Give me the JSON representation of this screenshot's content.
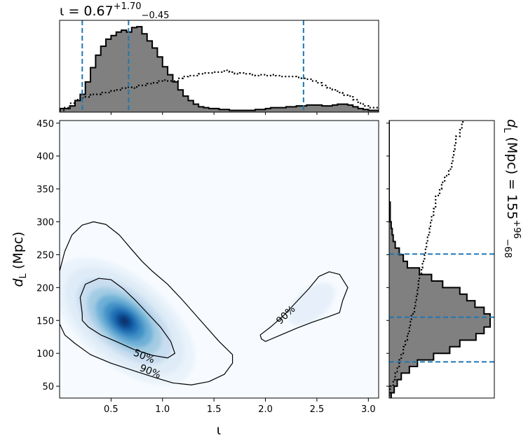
{
  "chart_data": [
    {
      "type": "histogram",
      "panel": "top-marginal",
      "title": {
        "base": "ι = 0.67",
        "sup": "+1.70",
        "sub": "−0.45"
      },
      "x_range": [
        0.0,
        3.1
      ],
      "bin_width": 0.05,
      "posterior_hist": [
        0.04,
        0.04,
        0.07,
        0.13,
        0.2,
        0.34,
        0.5,
        0.64,
        0.74,
        0.82,
        0.86,
        0.9,
        0.92,
        0.9,
        0.95,
        0.96,
        0.88,
        0.8,
        0.72,
        0.62,
        0.51,
        0.42,
        0.34,
        0.25,
        0.18,
        0.13,
        0.09,
        0.06,
        0.05,
        0.04,
        0.04,
        0.03,
        0.03,
        0.02,
        0.02,
        0.02,
        0.02,
        0.02,
        0.03,
        0.03,
        0.04,
        0.05,
        0.05,
        0.05,
        0.06,
        0.06,
        0.07,
        0.07,
        0.08,
        0.08,
        0.08,
        0.07,
        0.07,
        0.08,
        0.09,
        0.09,
        0.08,
        0.06,
        0.04,
        0.03,
        0.02,
        0.02
      ],
      "prior_line": [
        0.02,
        0.05,
        0.1,
        0.14,
        0.16,
        0.17,
        0.2,
        0.2,
        0.22,
        0.22,
        0.24,
        0.25,
        0.27,
        0.28,
        0.27,
        0.3,
        0.3,
        0.32,
        0.33,
        0.35,
        0.36,
        0.35,
        0.35,
        0.38,
        0.4,
        0.41,
        0.41,
        0.43,
        0.44,
        0.44,
        0.45,
        0.45,
        0.47,
        0.45,
        0.43,
        0.44,
        0.43,
        0.42,
        0.41,
        0.42,
        0.41,
        0.42,
        0.41,
        0.4,
        0.4,
        0.4,
        0.39,
        0.38,
        0.37,
        0.35,
        0.33,
        0.3,
        0.27,
        0.25,
        0.22,
        0.19,
        0.18,
        0.14,
        0.1,
        0.07,
        0.05,
        0.05
      ],
      "vlines": [
        0.22,
        0.67,
        2.37
      ],
      "colors": {
        "hist_fill": "#808080",
        "hist_edge": "#000000",
        "vline": "#1f77b4"
      }
    },
    {
      "type": "heatmap",
      "panel": "main",
      "xlabel": "ι",
      "ylabel": {
        "base": "d",
        "sub": "L",
        "unit": " (Mpc)"
      },
      "x_range": [
        0.0,
        3.1
      ],
      "y_range": [
        32,
        454
      ],
      "x_ticks": [
        "0.5",
        "1.0",
        "1.5",
        "2.0",
        "2.5",
        "3.0"
      ],
      "x_tick_values": [
        0.5,
        1.0,
        1.5,
        2.0,
        2.5,
        3.0
      ],
      "y_ticks": [
        "50",
        "100",
        "150",
        "200",
        "250",
        "300",
        "350",
        "400",
        "450"
      ],
      "y_tick_values": [
        50,
        100,
        150,
        200,
        250,
        300,
        350,
        400,
        450
      ],
      "density_peak": {
        "x": 0.6,
        "y": 150
      },
      "contours": [
        {
          "level": "90%",
          "points": [
            [
              0.0,
              225
            ],
            [
              0.05,
              255
            ],
            [
              0.12,
              280
            ],
            [
              0.22,
              295
            ],
            [
              0.33,
              300
            ],
            [
              0.45,
              296
            ],
            [
              0.58,
              280
            ],
            [
              0.7,
              258
            ],
            [
              0.8,
              240
            ],
            [
              0.9,
              225
            ],
            [
              1.05,
              205
            ],
            [
              1.2,
              180
            ],
            [
              1.38,
              148
            ],
            [
              1.55,
              118
            ],
            [
              1.68,
              98
            ],
            [
              1.68,
              85
            ],
            [
              1.6,
              68
            ],
            [
              1.45,
              57
            ],
            [
              1.28,
              52
            ],
            [
              1.1,
              55
            ],
            [
              0.95,
              62
            ],
            [
              0.75,
              72
            ],
            [
              0.5,
              85
            ],
            [
              0.3,
              98
            ],
            [
              0.15,
              115
            ],
            [
              0.05,
              128
            ],
            [
              0.0,
              145
            ]
          ]
        },
        {
          "level": "50%",
          "points": [
            [
              0.22,
              160
            ],
            [
              0.2,
              185
            ],
            [
              0.25,
              205
            ],
            [
              0.38,
              214
            ],
            [
              0.5,
              212
            ],
            [
              0.62,
              198
            ],
            [
              0.74,
              180
            ],
            [
              0.86,
              160
            ],
            [
              0.98,
              140
            ],
            [
              1.08,
              118
            ],
            [
              1.12,
              100
            ],
            [
              1.05,
              93
            ],
            [
              0.9,
              97
            ],
            [
              0.72,
              106
            ],
            [
              0.55,
              118
            ],
            [
              0.4,
              128
            ],
            [
              0.28,
              140
            ],
            [
              0.22,
              150
            ]
          ]
        },
        {
          "level": "90%",
          "points": [
            [
              1.95,
              128
            ],
            [
              2.05,
              140
            ],
            [
              2.18,
              158
            ],
            [
              2.3,
              178
            ],
            [
              2.42,
              198
            ],
            [
              2.52,
              217
            ],
            [
              2.62,
              224
            ],
            [
              2.72,
              220
            ],
            [
              2.8,
              200
            ],
            [
              2.75,
              180
            ],
            [
              2.72,
              162
            ],
            [
              2.6,
              155
            ],
            [
              2.45,
              147
            ],
            [
              2.3,
              138
            ],
            [
              2.15,
              128
            ],
            [
              2.0,
              118
            ],
            [
              1.96,
              122
            ]
          ]
        }
      ],
      "contour_labels": [
        {
          "text": "50%",
          "x": 0.82,
          "y": 95,
          "rotate": 22
        },
        {
          "text": "90%",
          "x": 0.88,
          "y": 72,
          "rotate": 22
        },
        {
          "text": "90%",
          "x": 2.2,
          "y": 158,
          "rotate": -44
        }
      ],
      "colors": {
        "colormap": "Blues",
        "contour": "#000000"
      }
    },
    {
      "type": "histogram",
      "panel": "right-marginal",
      "orientation": "horizontal",
      "title": {
        "base": "d",
        "sub_char": "L",
        "middle": " (Mpc) = 155",
        "sup": "+96",
        "sub": "−68"
      },
      "y_range": [
        32,
        454
      ],
      "bin_width": 10,
      "bin_start": 30,
      "posterior_hist": [
        0.02,
        0.05,
        0.08,
        0.12,
        0.2,
        0.28,
        0.44,
        0.6,
        0.7,
        0.86,
        0.94,
        1.0,
        1.0,
        0.94,
        0.85,
        0.77,
        0.7,
        0.53,
        0.42,
        0.3,
        0.18,
        0.14,
        0.1,
        0.06,
        0.04,
        0.03,
        0.02,
        0.01,
        0.01,
        0.01,
        0.0,
        0.0,
        0.0,
        0.0,
        0.0,
        0.0,
        0.0,
        0.0,
        0.0,
        0.0,
        0.0,
        0.0,
        0.0
      ],
      "prior_line": [
        0.0,
        0.01,
        0.04,
        0.06,
        0.08,
        0.1,
        0.12,
        0.14,
        0.16,
        0.18,
        0.2,
        0.21,
        0.22,
        0.25,
        0.26,
        0.27,
        0.28,
        0.29,
        0.3,
        0.32,
        0.33,
        0.35,
        0.36,
        0.37,
        0.38,
        0.4,
        0.41,
        0.42,
        0.44,
        0.46,
        0.46,
        0.5,
        0.52,
        0.55,
        0.59,
        0.62,
        0.63,
        0.64,
        0.65,
        0.66,
        0.7,
        0.72,
        0.73
      ],
      "hlines": [
        87,
        155,
        251
      ],
      "colors": {
        "hist_fill": "#808080",
        "hist_edge": "#000000",
        "hline": "#1f77b4"
      }
    }
  ]
}
